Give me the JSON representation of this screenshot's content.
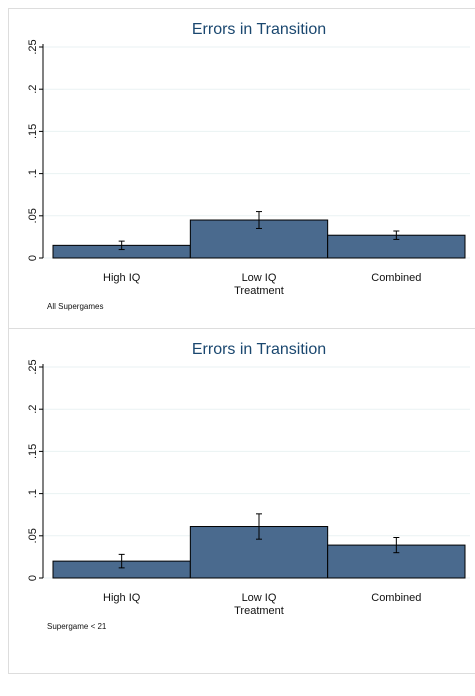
{
  "chart_data": [
    {
      "type": "bar",
      "title": "Errors in Transition",
      "categories": [
        "High IQ",
        "Low IQ",
        "Combined"
      ],
      "values": [
        0.015,
        0.045,
        0.027
      ],
      "errors": [
        0.005,
        0.01,
        0.005
      ],
      "color": "#4a6a8e",
      "ylim": [
        0,
        0.25
      ],
      "yticks": [
        0,
        {
          "value": 0.05,
          "label": ".05"
        },
        {
          "value": 0.1,
          "label": ".1"
        },
        {
          "value": 0.15,
          "label": ".15"
        },
        {
          "value": 0.2,
          "label": ".2"
        },
        {
          "value": 0.25,
          "label": ".25"
        }
      ],
      "grid": true,
      "xlabel": "Treatment",
      "note": "All Supergames"
    },
    {
      "type": "bar",
      "title": "Errors in Transition",
      "categories": [
        "High IQ",
        "Low IQ",
        "Combined"
      ],
      "values": [
        0.02,
        0.061,
        0.039
      ],
      "errors": [
        0.008,
        0.015,
        0.009
      ],
      "color": "#4a6a8e",
      "ylim": [
        0,
        0.25
      ],
      "yticks": [
        0,
        {
          "value": 0.05,
          "label": ".05"
        },
        {
          "value": 0.1,
          "label": ".1"
        },
        {
          "value": 0.15,
          "label": ".15"
        },
        {
          "value": 0.2,
          "label": ".2"
        },
        {
          "value": 0.25,
          "label": ".25"
        }
      ],
      "grid": true,
      "xlabel": "Treatment",
      "note": "Supergame < 21"
    }
  ]
}
